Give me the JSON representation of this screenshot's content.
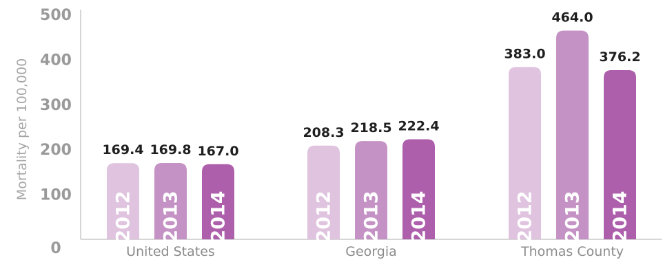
{
  "chart_data": {
    "type": "bar",
    "ylabel": "Mortality per 100,000",
    "ylim": [
      0,
      500
    ],
    "yticks": [
      "0",
      "100",
      "200",
      "300",
      "400",
      "500"
    ],
    "categories": [
      "United States",
      "Georgia",
      "Thomas County"
    ],
    "series": [
      {
        "year": "2012",
        "color": "#dfc3df",
        "values": [
          169.4,
          208.3,
          383.0
        ],
        "labels": [
          "169.4",
          "208.3",
          "383.0"
        ]
      },
      {
        "year": "2013",
        "color": "#c492c4",
        "values": [
          169.8,
          218.5,
          464.0
        ],
        "labels": [
          "169.8",
          "218.5",
          "464.0"
        ]
      },
      {
        "year": "2014",
        "color": "#ad5fab",
        "values": [
          167.0,
          222.4,
          376.2
        ],
        "labels": [
          "167.0",
          "222.4",
          "376.2"
        ]
      }
    ],
    "grid": false,
    "legend": "none"
  }
}
